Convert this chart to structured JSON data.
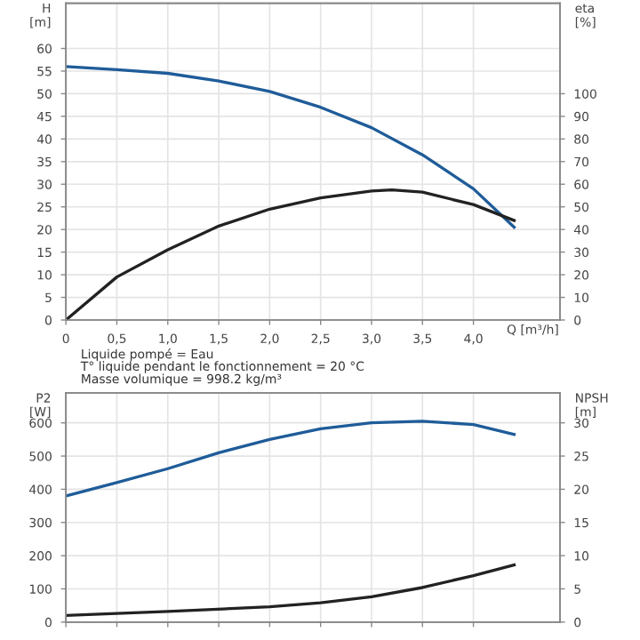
{
  "chart_data": [
    {
      "type": "line",
      "ylabel": "H\n[m]",
      "y2label": "eta\n[%]",
      "xlabel": "Q [m³/h]",
      "xlim": [
        0,
        4.85
      ],
      "xticks": [
        0,
        {
          "value": 0.5,
          "label": "0,5"
        },
        {
          "value": 1.0,
          "label": "1,0"
        },
        {
          "value": 1.5,
          "label": "1,5"
        },
        {
          "value": 2.0,
          "label": "2,0"
        },
        {
          "value": 2.5,
          "label": "2,5"
        },
        {
          "value": 3.0,
          "label": "3,0"
        },
        {
          "value": 3.5,
          "label": "3,5"
        },
        {
          "value": 4.0,
          "label": "4,0"
        }
      ],
      "ylim": [
        0,
        70
      ],
      "yticks": [
        0,
        5,
        10,
        15,
        20,
        25,
        30,
        35,
        40,
        45,
        50,
        55,
        60
      ],
      "y2lim": [
        0,
        140
      ],
      "y2ticks": [
        0,
        10,
        20,
        30,
        40,
        50,
        60,
        70,
        80,
        90,
        100
      ],
      "grid": true,
      "legend": false,
      "marker": "none",
      "line_style": "solid",
      "series": [
        {
          "color": "#1f5c99",
          "x": [
            0,
            0.5,
            1.0,
            1.5,
            2.0,
            2.5,
            3.0,
            3.5,
            4.0,
            4.4
          ],
          "values": [
            56,
            55.3,
            54.5,
            52.8,
            50.5,
            47,
            42.5,
            36.5,
            29,
            20.5
          ]
        },
        {
          "color": "#222222",
          "axis": "y2",
          "x": [
            0,
            0.5,
            1.0,
            1.5,
            2.0,
            2.5,
            3.0,
            3.2,
            3.5,
            4.0,
            4.4
          ],
          "values": [
            0,
            19,
            31,
            41.5,
            49,
            54,
            57,
            57.5,
            56.5,
            51,
            44
          ]
        }
      ],
      "annotations": [
        "Liquide pompé = Eau",
        "T° liquide pendant le fonctionnement = 20 °C",
        "Masse volumique = 998.2 kg/m³"
      ]
    },
    {
      "type": "line",
      "ylabel": "P2\n[W]",
      "y2label": "NPSH\n[m]",
      "xlim": [
        0,
        4.85
      ],
      "xticks": [
        {
          "value": 0,
          "label": null
        },
        {
          "value": 0.5,
          "label": null
        },
        {
          "value": 1.0,
          "label": null
        },
        {
          "value": 1.5,
          "label": null
        },
        {
          "value": 2.0,
          "label": null
        },
        {
          "value": 2.5,
          "label": null
        },
        {
          "value": 3.0,
          "label": null
        },
        {
          "value": 3.5,
          "label": null
        },
        {
          "value": 4.0,
          "label": null
        }
      ],
      "ylim": [
        0,
        690
      ],
      "yticks": [
        0,
        100,
        200,
        300,
        400,
        500,
        600
      ],
      "y2lim": [
        0,
        34.5
      ],
      "y2ticks": [
        0,
        5,
        10,
        15,
        20,
        25,
        30
      ],
      "tick_labels": "y",
      "grid": true,
      "legend": false,
      "marker": "none",
      "line_style": "solid",
      "series": [
        {
          "color": "#1f5c99",
          "x": [
            0,
            0.5,
            1.0,
            1.5,
            2.0,
            2.5,
            3.0,
            3.5,
            4.0,
            4.4
          ],
          "values": [
            380,
            420,
            462,
            510,
            550,
            582,
            600,
            605,
            595,
            565
          ]
        },
        {
          "color": "#222222",
          "axis": "y2",
          "x": [
            0,
            1.0,
            2.0,
            2.5,
            3.0,
            3.5,
            4.0,
            4.4
          ],
          "values": [
            1,
            1.6,
            2.3,
            2.9,
            3.8,
            5.2,
            7,
            8.6
          ]
        }
      ]
    }
  ]
}
